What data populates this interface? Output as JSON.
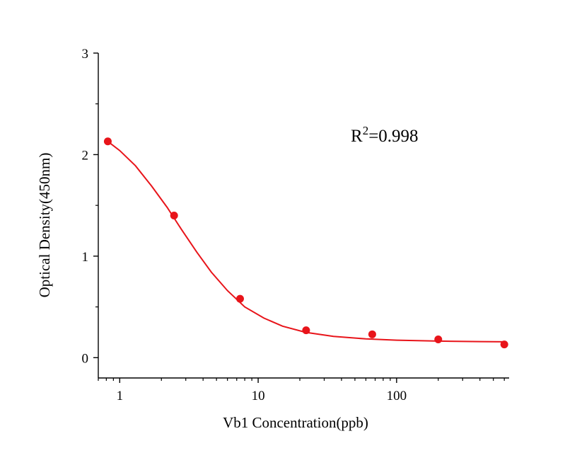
{
  "chart_data": {
    "type": "scatter",
    "xlabel": "Vb1 Concentration(ppb)",
    "ylabel": "Optical Density(450nm)",
    "x_scale": "log",
    "xlim": [
      0.7,
      650
    ],
    "ylim": [
      -0.2,
      3
    ],
    "x_ticks": [
      {
        "value": 1,
        "label": "1"
      },
      {
        "value": 10,
        "label": "10"
      },
      {
        "value": 100,
        "label": "100"
      }
    ],
    "y_ticks": [
      {
        "value": 0,
        "label": "0"
      },
      {
        "value": 1,
        "label": "1"
      },
      {
        "value": 2,
        "label": "2"
      },
      {
        "value": 3,
        "label": "3"
      }
    ],
    "annotation": {
      "base": "R",
      "sup": "2",
      "rest": "=0.998"
    },
    "series": [
      {
        "color": "#e8141a",
        "points": [
          {
            "x": 0.82,
            "y": 2.13
          },
          {
            "x": 2.47,
            "y": 1.4
          },
          {
            "x": 7.4,
            "y": 0.58
          },
          {
            "x": 22.2,
            "y": 0.27
          },
          {
            "x": 66.7,
            "y": 0.23
          },
          {
            "x": 200,
            "y": 0.18
          },
          {
            "x": 600,
            "y": 0.13
          }
        ],
        "fit_curve": [
          {
            "x": 0.82,
            "y": 2.13
          },
          {
            "x": 1.0,
            "y": 2.04
          },
          {
            "x": 1.3,
            "y": 1.89
          },
          {
            "x": 1.7,
            "y": 1.69
          },
          {
            "x": 2.2,
            "y": 1.48
          },
          {
            "x": 2.8,
            "y": 1.26
          },
          {
            "x": 3.6,
            "y": 1.04
          },
          {
            "x": 4.6,
            "y": 0.84
          },
          {
            "x": 6.0,
            "y": 0.66
          },
          {
            "x": 8.0,
            "y": 0.5
          },
          {
            "x": 11,
            "y": 0.39
          },
          {
            "x": 15,
            "y": 0.31
          },
          {
            "x": 22,
            "y": 0.25
          },
          {
            "x": 35,
            "y": 0.21
          },
          {
            "x": 60,
            "y": 0.185
          },
          {
            "x": 100,
            "y": 0.172
          },
          {
            "x": 200,
            "y": 0.163
          },
          {
            "x": 400,
            "y": 0.158
          },
          {
            "x": 600,
            "y": 0.156
          }
        ]
      }
    ]
  }
}
